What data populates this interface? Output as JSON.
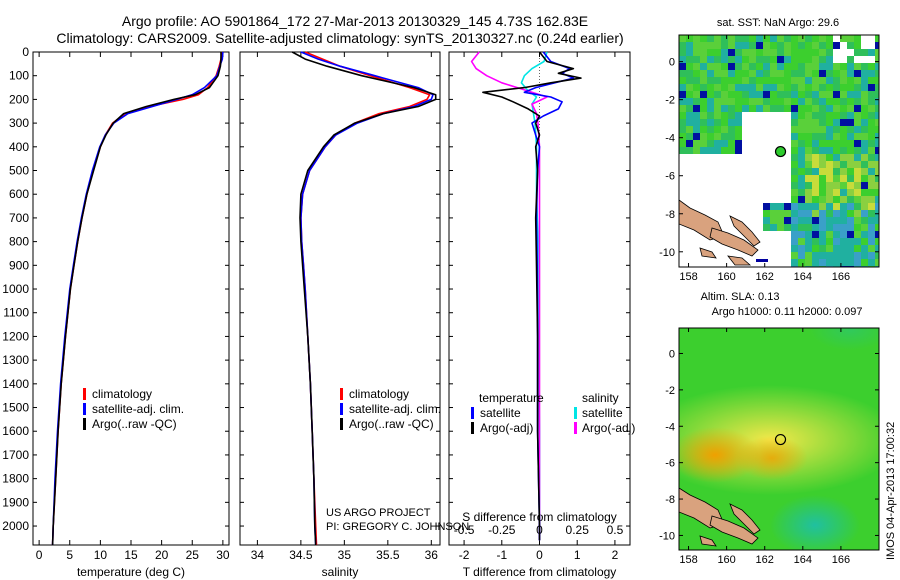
{
  "title": {
    "line1": "Argo profile: AO 5901864_172 27-Mar-2013 20130329_145 4.73S 162.83E",
    "line2": "Climatology: CARS2009. Satellite-adjusted climatology: synTS_20130327.nc (0.24d earlier)"
  },
  "colors": {
    "climatology": "#ff0000",
    "satellite": "#0000ff",
    "argo": "#000000",
    "salinity_satellite": "#00e5e5",
    "salinity_argo": "#ff00ff"
  },
  "project": {
    "line1": "US ARGO PROJECT",
    "line2": "PI: GREGORY C. JOHNSON"
  },
  "watermark": "IMOS 04-Apr-2013 17:00:32",
  "chart_data": [
    {
      "type": "line",
      "name": "temperature-profile",
      "xlabel": "temperature (deg C)",
      "xlim": [
        -1,
        31
      ],
      "ylim": [
        2080,
        0
      ],
      "xticks": [
        "0",
        "5",
        "10",
        "15",
        "20",
        "25",
        "30"
      ],
      "xtick_values": [
        0,
        5,
        10,
        15,
        20,
        25,
        30
      ],
      "yticks": [
        "0",
        "100",
        "200",
        "300",
        "400",
        "500",
        "600",
        "700",
        "800",
        "900",
        "1000",
        "1100",
        "1200",
        "1300",
        "1400",
        "1500",
        "1600",
        "1700",
        "1800",
        "1900",
        "2000"
      ],
      "ytick_values": [
        0,
        100,
        200,
        300,
        400,
        500,
        600,
        700,
        800,
        900,
        1000,
        1100,
        1200,
        1300,
        1400,
        1500,
        1600,
        1700,
        1800,
        1900,
        2000
      ],
      "legend": [
        "climatology",
        "satellite-adj. clim.",
        "Argo(..raw -QC)"
      ],
      "series": [
        {
          "name": "climatology",
          "color_key": "climatology",
          "depth": [
            0,
            30,
            60,
            100,
            150,
            180,
            200,
            230,
            260,
            300,
            350,
            400,
            500,
            600,
            700,
            800,
            900,
            1000,
            1200,
            1400,
            1600,
            1800,
            2000,
            2080
          ],
          "values": [
            29.8,
            29.7,
            29.4,
            28.9,
            27.5,
            26.0,
            23.5,
            18.0,
            14.0,
            12.0,
            10.8,
            10.0,
            8.8,
            7.8,
            7.0,
            6.3,
            5.7,
            5.1,
            4.3,
            3.6,
            3.1,
            2.7,
            2.3,
            2.2
          ]
        },
        {
          "name": "satellite-adj. clim.",
          "color_key": "satellite",
          "depth": [
            0,
            30,
            60,
            100,
            150,
            180,
            200,
            230,
            260,
            300,
            350,
            400,
            500,
            600,
            700,
            800,
            900,
            1000,
            1200,
            1400,
            1600,
            1800,
            2000,
            2080
          ],
          "values": [
            30.0,
            29.9,
            29.5,
            29.0,
            27.0,
            25.0,
            22.5,
            18.5,
            14.5,
            12.2,
            10.8,
            9.9,
            8.7,
            7.7,
            6.9,
            6.2,
            5.6,
            5.0,
            4.2,
            3.5,
            3.0,
            2.6,
            2.3,
            2.2
          ]
        },
        {
          "name": "Argo(..raw -QC)",
          "color_key": "argo",
          "depth": [
            0,
            30,
            60,
            100,
            150,
            180,
            200,
            230,
            260,
            300,
            350,
            400,
            500,
            600,
            700,
            800,
            900,
            1000,
            1200,
            1400,
            1600,
            1800,
            2000,
            2080
          ],
          "values": [
            29.7,
            29.7,
            29.6,
            29.2,
            27.8,
            25.5,
            22.0,
            17.5,
            13.8,
            12.1,
            10.9,
            10.0,
            8.9,
            7.8,
            7.0,
            6.3,
            5.7,
            5.1,
            4.3,
            3.6,
            3.1,
            2.7,
            2.3,
            2.2
          ]
        }
      ]
    },
    {
      "type": "line",
      "name": "salinity-profile",
      "xlabel": "salinity",
      "xlim": [
        33.8,
        36.1
      ],
      "ylim": [
        2080,
        0
      ],
      "xticks": [
        "34",
        "34.5",
        "35",
        "35.5",
        "36"
      ],
      "xtick_values": [
        34,
        34.5,
        35,
        35.5,
        36
      ],
      "legend": [
        "climatology",
        "satellite-adj. clim.",
        "Argo(..raw -QC)"
      ],
      "series": [
        {
          "name": "climatology",
          "color_key": "climatology",
          "depth": [
            0,
            30,
            60,
            100,
            150,
            180,
            200,
            230,
            260,
            300,
            350,
            400,
            500,
            600,
            700,
            800,
            900,
            1000,
            1200,
            1400,
            1600,
            1800,
            2000,
            2080
          ],
          "values": [
            34.55,
            34.75,
            34.95,
            35.3,
            35.75,
            35.98,
            35.95,
            35.75,
            35.4,
            35.12,
            34.9,
            34.78,
            34.6,
            34.52,
            34.5,
            34.51,
            34.53,
            34.55,
            34.58,
            34.61,
            34.63,
            34.65,
            34.67,
            34.68
          ]
        },
        {
          "name": "satellite-adj. clim.",
          "color_key": "satellite",
          "depth": [
            0,
            30,
            60,
            100,
            150,
            180,
            200,
            230,
            260,
            300,
            350,
            400,
            500,
            600,
            700,
            800,
            900,
            1000,
            1200,
            1400,
            1600,
            1800,
            2000,
            2080
          ],
          "values": [
            34.5,
            34.7,
            34.95,
            35.35,
            35.85,
            36.02,
            36.0,
            35.8,
            35.45,
            35.15,
            34.9,
            34.78,
            34.6,
            34.52,
            34.5,
            34.51,
            34.53,
            34.55,
            34.58,
            34.61,
            34.63,
            34.65,
            34.66,
            34.67
          ]
        },
        {
          "name": "Argo(..raw -QC)",
          "color_key": "argo",
          "depth": [
            0,
            30,
            60,
            100,
            150,
            180,
            200,
            230,
            260,
            300,
            350,
            400,
            500,
            600,
            700,
            800,
            900,
            1000,
            1200,
            1400,
            1600,
            1800,
            2000,
            2080
          ],
          "values": [
            34.4,
            34.55,
            34.8,
            35.2,
            35.8,
            36.05,
            36.05,
            35.85,
            35.45,
            35.12,
            34.88,
            34.76,
            34.58,
            34.5,
            34.49,
            34.5,
            34.52,
            34.54,
            34.58,
            34.61,
            34.63,
            34.65,
            34.66,
            34.67
          ]
        }
      ]
    },
    {
      "type": "line",
      "name": "difference-profile",
      "xlabel": "T difference from climatology",
      "xlabel_top": "S difference from climatology",
      "xlim": [
        -2.4,
        2.4
      ],
      "ylim": [
        2080,
        0
      ],
      "xticks": [
        "-2",
        "-1",
        "0",
        "1",
        "2"
      ],
      "xtick_values": [
        -2,
        -1,
        0,
        1,
        2
      ],
      "sticks": [
        "-0.5",
        "-0.25",
        "0",
        "0.25",
        "0.5"
      ],
      "stick_values": [
        -0.5,
        -0.25,
        0,
        0.25,
        0.5
      ],
      "salinity_scale": 4,
      "legend_temperature_title": "temperature",
      "legend_salinity_title": "salinity",
      "legend_temperature": [
        "satellite",
        "Argo(-adj)"
      ],
      "legend_salinity": [
        "satellite",
        "Argo(-adj)"
      ],
      "series": [
        {
          "name": "T satellite",
          "color_key": "satellite",
          "depth": [
            0,
            40,
            70,
            90,
            110,
            130,
            150,
            170,
            190,
            210,
            240,
            270,
            300,
            350,
            400,
            500,
            700,
            900,
            1200,
            1600,
            2000,
            2060
          ],
          "values": [
            0.1,
            0.3,
            0.8,
            0.6,
            0.9,
            0.4,
            -0.1,
            -0.4,
            0.3,
            0.6,
            0.5,
            0.1,
            -0.2,
            -0.1,
            0.0,
            -0.05,
            -0.08,
            -0.06,
            -0.05,
            -0.05,
            0.0,
            0.0
          ]
        },
        {
          "name": "T Argo(-adj)",
          "color_key": "argo",
          "depth": [
            0,
            40,
            70,
            90,
            110,
            130,
            150,
            170,
            190,
            210,
            240,
            270,
            300,
            350,
            400,
            500,
            700,
            900,
            1200,
            1600,
            2000,
            2060
          ],
          "values": [
            0.0,
            0.2,
            0.9,
            0.5,
            1.1,
            0.3,
            -0.4,
            -1.5,
            -1.0,
            -0.7,
            -0.3,
            0.0,
            -0.1,
            0.0,
            -0.1,
            -0.05,
            -0.1,
            -0.08,
            -0.05,
            -0.05,
            0.0,
            0.0
          ]
        },
        {
          "name": "S satellite",
          "color_key": "salinity_satellite",
          "depth": [
            0,
            40,
            70,
            100,
            130,
            160,
            190,
            220,
            260,
            300,
            400,
            600,
            800,
            1000,
            1300,
            1600,
            2000,
            2060
          ],
          "values": [
            0.05,
            0.03,
            -0.05,
            -0.1,
            -0.12,
            -0.08,
            -0.02,
            -0.05,
            -0.04,
            -0.03,
            -0.02,
            -0.02,
            -0.01,
            -0.01,
            -0.005,
            0.0,
            0.0,
            0.0
          ]
        },
        {
          "name": "S Argo(-adj)",
          "color_key": "salinity_argo",
          "depth": [
            0,
            40,
            70,
            100,
            130,
            160,
            190,
            220,
            260,
            300,
            400,
            600,
            800,
            1000,
            1300,
            1600,
            2000,
            2060
          ],
          "values": [
            -0.4,
            -0.45,
            -0.42,
            -0.35,
            -0.25,
            -0.1,
            0.05,
            -0.05,
            -0.02,
            -0.01,
            0.0,
            0.0,
            0.0,
            0.0,
            0.0,
            0.0,
            0.0,
            0.0
          ]
        }
      ]
    },
    {
      "type": "heatmap",
      "name": "sst-map",
      "title": "sat. SST: NaN Argo: 29.6",
      "xlim": [
        157.5,
        168
      ],
      "ylim": [
        -10.8,
        1.4
      ],
      "xticks": [
        "158",
        "160",
        "162",
        "164",
        "166"
      ],
      "xtick_values": [
        158,
        160,
        162,
        164,
        166
      ],
      "yticks": [
        "0",
        "-2",
        "-4",
        "-6",
        "-8",
        "-10"
      ],
      "ytick_values": [
        0,
        -2,
        -4,
        -6,
        -8,
        -10
      ],
      "marker": {
        "lon": 162.83,
        "lat": -4.73
      }
    },
    {
      "type": "heatmap",
      "name": "sla-map",
      "title": "Altim. SLA: 0.13",
      "subtitle": "Argo h1000: 0.11 h2000: 0.097",
      "xlim": [
        157.5,
        168
      ],
      "ylim": [
        -10.8,
        1.4
      ],
      "xticks": [
        "158",
        "160",
        "162",
        "164",
        "166"
      ],
      "xtick_values": [
        158,
        160,
        162,
        164,
        166
      ],
      "yticks": [
        "0",
        "-2",
        "-4",
        "-6",
        "-8",
        "-10"
      ],
      "ytick_values": [
        0,
        -2,
        -4,
        -6,
        -8,
        -10
      ],
      "marker": {
        "lon": 162.83,
        "lat": -4.73
      }
    }
  ]
}
